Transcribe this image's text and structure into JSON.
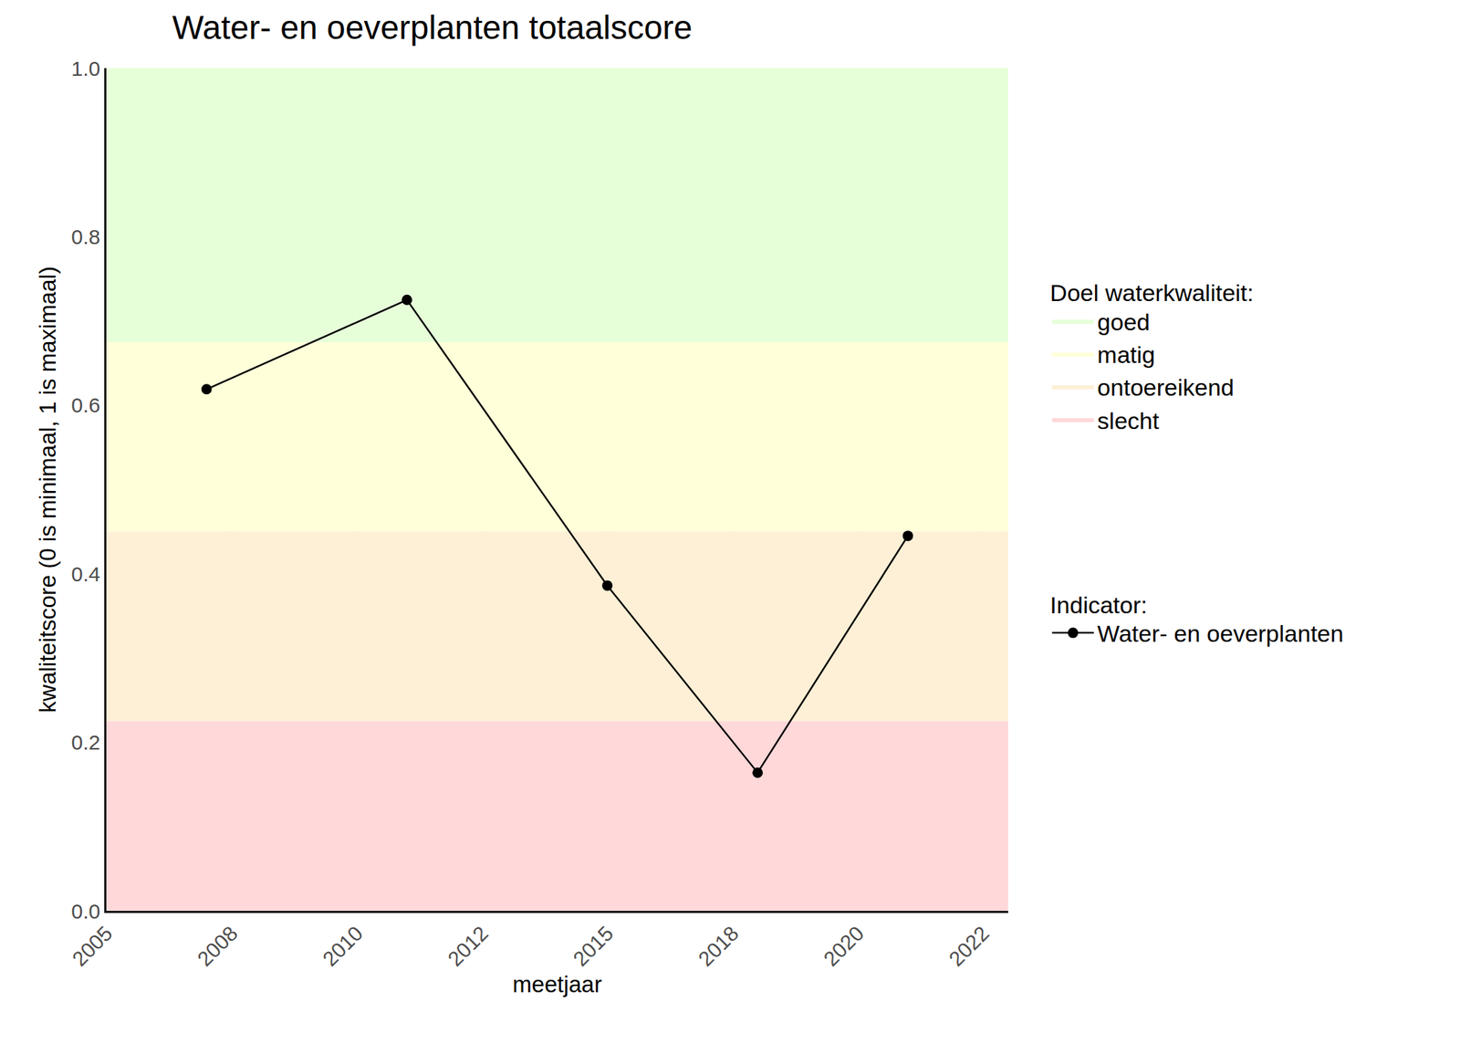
{
  "chart_data": {
    "type": "line",
    "title": "Water- en oeverplanten totaalscore",
    "x_label": "meetjaar",
    "y_label": "kwaliteitscore (0 is minimaal, 1 is maximaal)",
    "x": [
      2007,
      2011,
      2015,
      2018,
      2021
    ],
    "series": [
      {
        "name": "Water- en oeverplanten",
        "color": "#000000",
        "marker": "circle",
        "line_style": "solid",
        "values": [
          0.619,
          0.725,
          0.386,
          0.164,
          0.445
        ]
      }
    ],
    "series_legend_title": "Indicator:",
    "bands": {
      "title": "Doel waterkwaliteit:",
      "items": [
        {
          "name": "goed",
          "color": "#e6ffd9",
          "range": [
            0.675,
            1.0
          ]
        },
        {
          "name": "matig",
          "color": "#ffffd9",
          "range": [
            0.45,
            0.675
          ]
        },
        {
          "name": "ontoereikend",
          "color": "#fdf0d6",
          "range": [
            0.225,
            0.45
          ]
        },
        {
          "name": "slecht",
          "color": "#ffd8d9",
          "range": [
            0.0,
            0.225
          ]
        }
      ]
    },
    "xlim": [
      2005,
      2023
    ],
    "xticks": [
      {
        "value": 2005,
        "label": "2005"
      },
      {
        "value": 2007.5,
        "label": "2008"
      },
      {
        "value": 2010,
        "label": "2010"
      },
      {
        "value": 2012.5,
        "label": "2012"
      },
      {
        "value": 2015,
        "label": "2015"
      },
      {
        "value": 2017.5,
        "label": "2018"
      },
      {
        "value": 2020,
        "label": "2020"
      },
      {
        "value": 2022.5,
        "label": "2022"
      }
    ],
    "ylim": [
      0,
      1
    ],
    "yticks": [
      {
        "value": 0,
        "label": "0.0"
      },
      0.2,
      0.4,
      0.6,
      0.8,
      {
        "value": 1,
        "label": "1.0"
      }
    ],
    "grid": true,
    "legend": "right"
  }
}
